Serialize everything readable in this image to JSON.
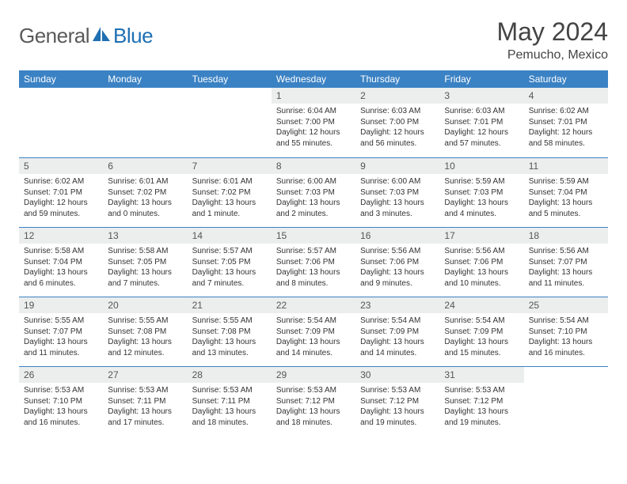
{
  "brand": {
    "name_part1": "General",
    "name_part2": "Blue"
  },
  "title": "May 2024",
  "location": "Pemucho, Mexico",
  "header_color": "#3b82c4",
  "daynum_bg": "#eceded",
  "day_names": [
    "Sunday",
    "Monday",
    "Tuesday",
    "Wednesday",
    "Thursday",
    "Friday",
    "Saturday"
  ],
  "weeks": [
    [
      {
        "blank": true
      },
      {
        "blank": true
      },
      {
        "blank": true
      },
      {
        "d": "1",
        "sr": "6:04 AM",
        "ss": "7:00 PM",
        "dl": "12 hours and 55 minutes."
      },
      {
        "d": "2",
        "sr": "6:03 AM",
        "ss": "7:00 PM",
        "dl": "12 hours and 56 minutes."
      },
      {
        "d": "3",
        "sr": "6:03 AM",
        "ss": "7:01 PM",
        "dl": "12 hours and 57 minutes."
      },
      {
        "d": "4",
        "sr": "6:02 AM",
        "ss": "7:01 PM",
        "dl": "12 hours and 58 minutes."
      }
    ],
    [
      {
        "d": "5",
        "sr": "6:02 AM",
        "ss": "7:01 PM",
        "dl": "12 hours and 59 minutes."
      },
      {
        "d": "6",
        "sr": "6:01 AM",
        "ss": "7:02 PM",
        "dl": "13 hours and 0 minutes."
      },
      {
        "d": "7",
        "sr": "6:01 AM",
        "ss": "7:02 PM",
        "dl": "13 hours and 1 minute."
      },
      {
        "d": "8",
        "sr": "6:00 AM",
        "ss": "7:03 PM",
        "dl": "13 hours and 2 minutes."
      },
      {
        "d": "9",
        "sr": "6:00 AM",
        "ss": "7:03 PM",
        "dl": "13 hours and 3 minutes."
      },
      {
        "d": "10",
        "sr": "5:59 AM",
        "ss": "7:03 PM",
        "dl": "13 hours and 4 minutes."
      },
      {
        "d": "11",
        "sr": "5:59 AM",
        "ss": "7:04 PM",
        "dl": "13 hours and 5 minutes."
      }
    ],
    [
      {
        "d": "12",
        "sr": "5:58 AM",
        "ss": "7:04 PM",
        "dl": "13 hours and 6 minutes."
      },
      {
        "d": "13",
        "sr": "5:58 AM",
        "ss": "7:05 PM",
        "dl": "13 hours and 7 minutes."
      },
      {
        "d": "14",
        "sr": "5:57 AM",
        "ss": "7:05 PM",
        "dl": "13 hours and 7 minutes."
      },
      {
        "d": "15",
        "sr": "5:57 AM",
        "ss": "7:06 PM",
        "dl": "13 hours and 8 minutes."
      },
      {
        "d": "16",
        "sr": "5:56 AM",
        "ss": "7:06 PM",
        "dl": "13 hours and 9 minutes."
      },
      {
        "d": "17",
        "sr": "5:56 AM",
        "ss": "7:06 PM",
        "dl": "13 hours and 10 minutes."
      },
      {
        "d": "18",
        "sr": "5:56 AM",
        "ss": "7:07 PM",
        "dl": "13 hours and 11 minutes."
      }
    ],
    [
      {
        "d": "19",
        "sr": "5:55 AM",
        "ss": "7:07 PM",
        "dl": "13 hours and 11 minutes."
      },
      {
        "d": "20",
        "sr": "5:55 AM",
        "ss": "7:08 PM",
        "dl": "13 hours and 12 minutes."
      },
      {
        "d": "21",
        "sr": "5:55 AM",
        "ss": "7:08 PM",
        "dl": "13 hours and 13 minutes."
      },
      {
        "d": "22",
        "sr": "5:54 AM",
        "ss": "7:09 PM",
        "dl": "13 hours and 14 minutes."
      },
      {
        "d": "23",
        "sr": "5:54 AM",
        "ss": "7:09 PM",
        "dl": "13 hours and 14 minutes."
      },
      {
        "d": "24",
        "sr": "5:54 AM",
        "ss": "7:09 PM",
        "dl": "13 hours and 15 minutes."
      },
      {
        "d": "25",
        "sr": "5:54 AM",
        "ss": "7:10 PM",
        "dl": "13 hours and 16 minutes."
      }
    ],
    [
      {
        "d": "26",
        "sr": "5:53 AM",
        "ss": "7:10 PM",
        "dl": "13 hours and 16 minutes."
      },
      {
        "d": "27",
        "sr": "5:53 AM",
        "ss": "7:11 PM",
        "dl": "13 hours and 17 minutes."
      },
      {
        "d": "28",
        "sr": "5:53 AM",
        "ss": "7:11 PM",
        "dl": "13 hours and 18 minutes."
      },
      {
        "d": "29",
        "sr": "5:53 AM",
        "ss": "7:12 PM",
        "dl": "13 hours and 18 minutes."
      },
      {
        "d": "30",
        "sr": "5:53 AM",
        "ss": "7:12 PM",
        "dl": "13 hours and 19 minutes."
      },
      {
        "d": "31",
        "sr": "5:53 AM",
        "ss": "7:12 PM",
        "dl": "13 hours and 19 minutes."
      },
      {
        "blank": true
      }
    ]
  ],
  "labels": {
    "sunrise": "Sunrise:",
    "sunset": "Sunset:",
    "daylight": "Daylight:"
  }
}
